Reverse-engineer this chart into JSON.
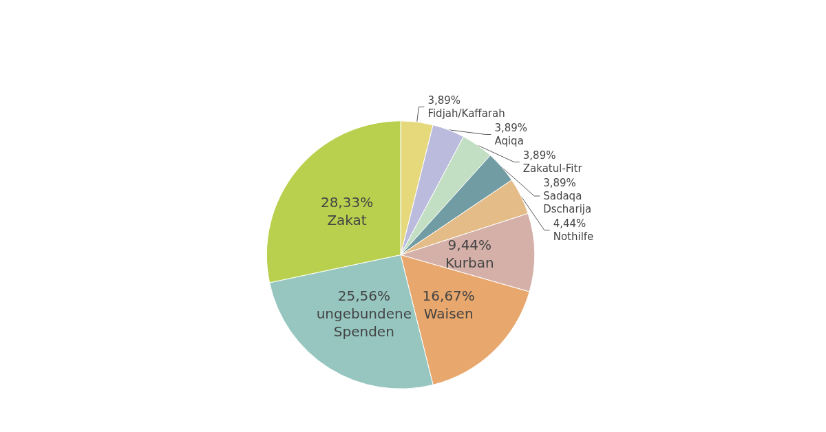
{
  "chart_data": {
    "type": "pie",
    "categories": [
      "Fidjah/Kaffarah",
      "Aqiqa",
      "Zakatul-Fitr",
      "Sadaqa Dscharija",
      "Nothilfe",
      "Kurban",
      "Waisen",
      "ungebundene Spenden",
      "Zakat"
    ],
    "values": [
      3.89,
      3.89,
      3.89,
      3.89,
      4.44,
      9.44,
      16.67,
      25.56,
      28.33
    ],
    "colors": [
      "#e5d97c",
      "#bbbbdd",
      "#c2dfc3",
      "#729ca3",
      "#e4bc88",
      "#d4b0a8",
      "#e8a76c",
      "#96c6bf",
      "#b9d04e"
    ],
    "value_labels": [
      "3,89%",
      "3,89%",
      "3,89%",
      "3,89%",
      "4,44%",
      "9,44%",
      "16,67%",
      "25,56%",
      "28,33%"
    ],
    "legend": false
  }
}
